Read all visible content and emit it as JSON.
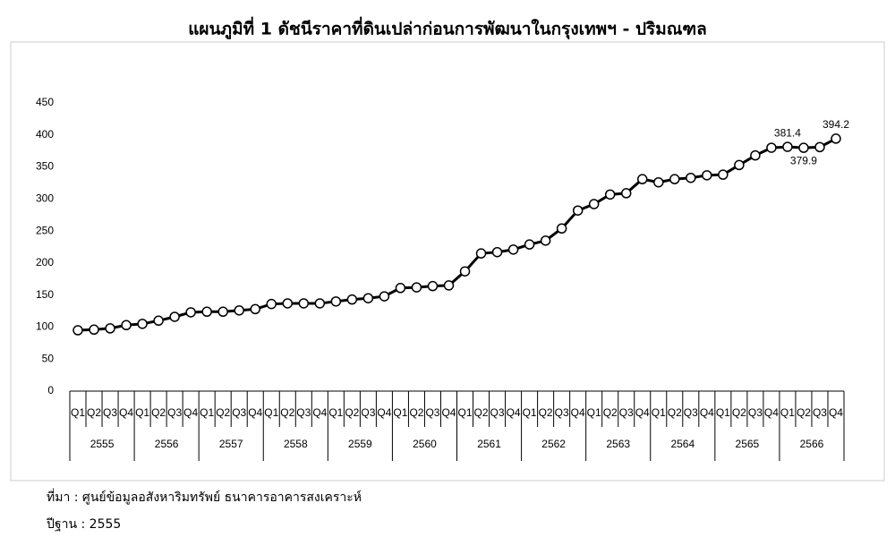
{
  "chart_data": {
    "type": "line",
    "title": "แผนภูมิที่ 1 ดัชนีราคาที่ดินเปล่าก่อนการพัฒนาในกรุงเทพฯ - ปริมณฑล",
    "categories": [
      "Q1",
      "Q2",
      "Q3",
      "Q4",
      "Q1",
      "Q2",
      "Q3",
      "Q4",
      "Q1",
      "Q2",
      "Q3",
      "Q4",
      "Q1",
      "Q2",
      "Q3",
      "Q4",
      "Q1",
      "Q2",
      "Q3",
      "Q4",
      "Q1",
      "Q2",
      "Q3",
      "Q4",
      "Q1",
      "Q2",
      "Q3",
      "Q4",
      "Q1",
      "Q2",
      "Q3",
      "Q4",
      "Q1",
      "Q2",
      "Q3",
      "Q4",
      "Q1",
      "Q2",
      "Q3",
      "Q4",
      "Q1",
      "Q2",
      "Q3",
      "Q4",
      "Q1",
      "Q2",
      "Q3",
      "Q4"
    ],
    "x_groups": [
      "2555",
      "2556",
      "2557",
      "2558",
      "2559",
      "2560",
      "2561",
      "2562",
      "2563",
      "2564",
      "2565",
      "2566"
    ],
    "series": [
      {
        "name": "ดัชนีราคาที่ดินเปล่า",
        "color": "#000000",
        "values": [
          95,
          96,
          98,
          103,
          105,
          110,
          116,
          123,
          124,
          124,
          126,
          128,
          136,
          137,
          137,
          137,
          140,
          143,
          145,
          148,
          161,
          162,
          164,
          165,
          187,
          215,
          217,
          221,
          229,
          235,
          254,
          282,
          292,
          307,
          309,
          331,
          326,
          331,
          333,
          337,
          338,
          353,
          368,
          380,
          381.4,
          379.9,
          381,
          394.2
        ],
        "value_labels": [
          null,
          null,
          null,
          null,
          null,
          null,
          null,
          null,
          null,
          null,
          null,
          null,
          null,
          null,
          null,
          null,
          null,
          null,
          null,
          null,
          null,
          null,
          null,
          null,
          null,
          null,
          null,
          null,
          null,
          null,
          null,
          null,
          null,
          null,
          null,
          null,
          null,
          null,
          null,
          null,
          null,
          null,
          null,
          null,
          "381.4",
          "379.9",
          null,
          "394.2"
        ]
      }
    ],
    "ylim": [
      0,
      450
    ],
    "yticks": [
      0,
      50,
      100,
      150,
      200,
      250,
      300,
      350,
      400,
      450
    ],
    "grid": false
  },
  "footnotes": [
    "ที่มา : ศูนย์ข้อมูลอสังหาริมทรัพย์ ธนาคารอาคารสงเคราะห์",
    "ปีฐาน : 2555"
  ]
}
